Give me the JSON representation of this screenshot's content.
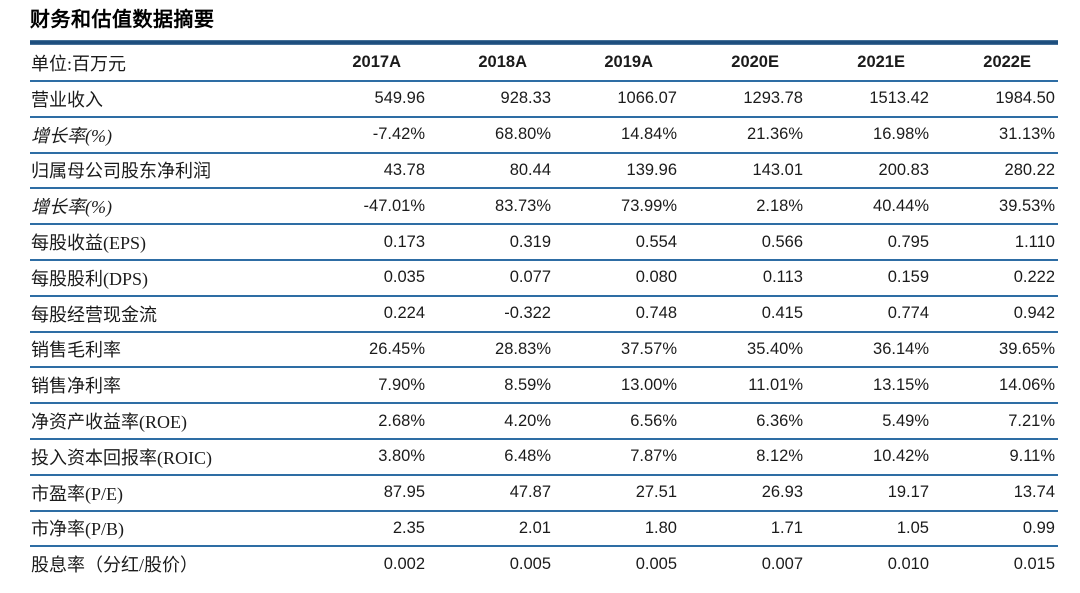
{
  "title": "财务和估值数据摘要",
  "table": {
    "unit_label": "单位:百万元",
    "columns": [
      "2017A",
      "2018A",
      "2019A",
      "2020E",
      "2021E",
      "2022E"
    ],
    "rows": [
      {
        "label": "营业收入",
        "italic": false,
        "values": [
          "549.96",
          "928.33",
          "1066.07",
          "1293.78",
          "1513.42",
          "1984.50"
        ]
      },
      {
        "label": "增长率(%)",
        "italic": true,
        "values": [
          "-7.42%",
          "68.80%",
          "14.84%",
          "21.36%",
          "16.98%",
          "31.13%"
        ]
      },
      {
        "label": "归属母公司股东净利润",
        "italic": false,
        "values": [
          "43.78",
          "80.44",
          "139.96",
          "143.01",
          "200.83",
          "280.22"
        ]
      },
      {
        "label": "增长率(%)",
        "italic": true,
        "values": [
          "-47.01%",
          "83.73%",
          "73.99%",
          "2.18%",
          "40.44%",
          "39.53%"
        ]
      },
      {
        "label": "每股收益(EPS)",
        "italic": false,
        "values": [
          "0.173",
          "0.319",
          "0.554",
          "0.566",
          "0.795",
          "1.110"
        ]
      },
      {
        "label": "每股股利(DPS)",
        "italic": false,
        "values": [
          "0.035",
          "0.077",
          "0.080",
          "0.113",
          "0.159",
          "0.222"
        ]
      },
      {
        "label": "每股经营现金流",
        "italic": false,
        "values": [
          "0.224",
          "-0.322",
          "0.748",
          "0.415",
          "0.774",
          "0.942"
        ]
      },
      {
        "label": "销售毛利率",
        "italic": false,
        "values": [
          "26.45%",
          "28.83%",
          "37.57%",
          "35.40%",
          "36.14%",
          "39.65%"
        ]
      },
      {
        "label": "销售净利率",
        "italic": false,
        "values": [
          "7.90%",
          "8.59%",
          "13.00%",
          "11.01%",
          "13.15%",
          "14.06%"
        ]
      },
      {
        "label": "净资产收益率(ROE)",
        "italic": false,
        "values": [
          "2.68%",
          "4.20%",
          "6.56%",
          "6.36%",
          "5.49%",
          "7.21%"
        ]
      },
      {
        "label": "投入资本回报率(ROIC)",
        "italic": false,
        "values": [
          "3.80%",
          "6.48%",
          "7.87%",
          "8.12%",
          "10.42%",
          "9.11%"
        ]
      },
      {
        "label": "市盈率(P/E)",
        "italic": false,
        "values": [
          "87.95",
          "47.87",
          "27.51",
          "26.93",
          "19.17",
          "13.74"
        ]
      },
      {
        "label": "市净率(P/B)",
        "italic": false,
        "values": [
          "2.35",
          "2.01",
          "1.80",
          "1.71",
          "1.05",
          "0.99"
        ]
      },
      {
        "label": "股息率（分红/股价）",
        "italic": false,
        "values": [
          "0.002",
          "0.005",
          "0.005",
          "0.007",
          "0.010",
          "0.015"
        ]
      }
    ]
  },
  "colors": {
    "rule_dark": "#1c4d7d",
    "rule_mid": "#2e6da4",
    "rule_light": "#5b82a6",
    "text": "#1b1b1b"
  }
}
